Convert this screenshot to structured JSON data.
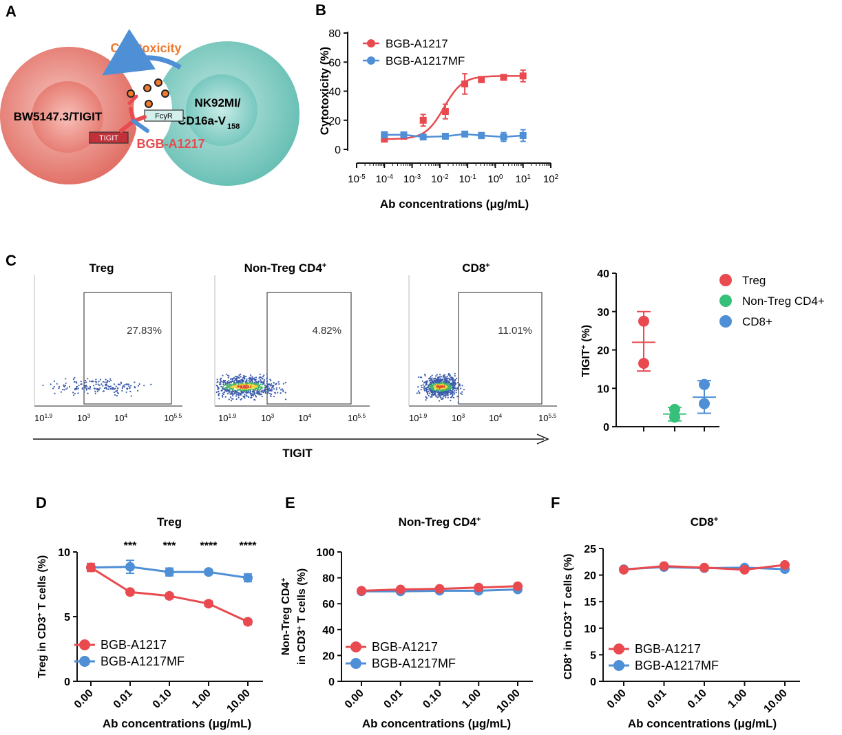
{
  "colors": {
    "red": "#e84a4f",
    "blue": "#4f8fd6",
    "green": "#36c07a",
    "cellRed": "#e26a62",
    "cellTeal": "#6fc4bb",
    "orange": "#ef7a30"
  },
  "panelA": {
    "letter": "A",
    "cytotoxicity": "Cytotoxicity",
    "leftCell": "BW5147.3/TIGIT",
    "rightCell1": "NK92MI/",
    "rightCell2": "CD16a-V",
    "rightCellSub": "158",
    "receptorFc": "FcγR",
    "receptorTigit": "TIGIT",
    "antibody": "BGB-A1217"
  },
  "panelC": {
    "letter": "C",
    "axisLabel": "TIGIT",
    "flow": [
      {
        "title": "Treg",
        "titleSup": "",
        "pct": "27.83%"
      },
      {
        "title": "Non-Treg CD4",
        "titleSup": "+",
        "pct": "4.82%"
      },
      {
        "title": "CD8",
        "titleSup": "+",
        "pct": "11.01%"
      }
    ],
    "flowTicks": [
      {
        "base": "10",
        "exp": "1.9"
      },
      {
        "base": "10",
        "exp": "3"
      },
      {
        "base": "10",
        "exp": "4"
      },
      {
        "base": "10",
        "exp": "5.5"
      }
    ]
  },
  "chart_data": [
    {
      "id": "B",
      "letter": "B",
      "type": "line",
      "xscale": "log",
      "xlabel": "Ab concentrations (μg/mL)",
      "ylabel": "Cytotoxicity (%)",
      "xlim": [
        -5,
        2
      ],
      "ylim": [
        0,
        80
      ],
      "yticks": [
        0,
        20,
        40,
        60,
        80
      ],
      "xticks": [
        {
          "base": "10",
          "exp": "-5"
        },
        {
          "base": "10",
          "exp": "-4"
        },
        {
          "base": "10",
          "exp": "-3"
        },
        {
          "base": "10",
          "exp": "-2"
        },
        {
          "base": "10",
          "exp": "-1"
        },
        {
          "base": "10",
          "exp": "0"
        },
        {
          "base": "10",
          "exp": "1"
        },
        {
          "base": "10",
          "exp": "2"
        }
      ],
      "legend": "top-left",
      "series": [
        {
          "name": "BGB-A1217",
          "color": "#e84a4f",
          "log10x": [
            -4,
            -3.3,
            -2.6,
            -1.8,
            -1.1,
            -0.5,
            0.3,
            1
          ],
          "y": [
            7,
            9,
            20,
            26,
            45,
            48,
            49.5,
            50.5
          ],
          "err": [
            1,
            1,
            4,
            5,
            7,
            2,
            1,
            4
          ]
        },
        {
          "name": "BGB-A1217MF",
          "color": "#4f8fd6",
          "log10x": [
            -4,
            -3.3,
            -2.6,
            -1.8,
            -1.1,
            -0.5,
            0.3,
            1
          ],
          "y": [
            10,
            10,
            8.5,
            9,
            10.5,
            9.5,
            8.5,
            9.5
          ],
          "err": [
            2,
            1,
            1,
            1,
            1,
            2,
            3,
            4
          ]
        }
      ]
    },
    {
      "id": "C2",
      "type": "scatter",
      "ylabel": "TIGIT",
      "ylabelSup": "+",
      "ylabelRest": " (%)",
      "ylim": [
        0,
        40
      ],
      "yticks": [
        0,
        10,
        20,
        30,
        40
      ],
      "legend": "top-right",
      "groups": [
        {
          "name": "Treg",
          "color": "#e84a4f",
          "points": [
            27.5,
            16.5
          ],
          "mean": 22,
          "error": [
            14.5,
            30
          ]
        },
        {
          "name": "Non-Treg CD4+",
          "color": "#36c07a",
          "points": [
            4.5,
            2.5
          ],
          "mean": 3.3,
          "error": [
            1.5,
            5
          ]
        },
        {
          "name": "CD8+",
          "color": "#4f8fd6",
          "points": [
            11,
            6
          ],
          "mean": 7.7,
          "error": [
            3.5,
            12
          ]
        }
      ]
    },
    {
      "id": "D",
      "letter": "D",
      "type": "line",
      "title": "Treg",
      "titleSup": "",
      "xlabel": "Ab concentrations (μg/mL)",
      "ylabel": "Treg in CD3",
      "ylabelSup": "+",
      "ylabelRest": " T cells (%)",
      "categories": [
        "0.00",
        "0.01",
        "0.10",
        "1.00",
        "10.00"
      ],
      "ylim": [
        0,
        10
      ],
      "yticks": [
        0,
        5,
        10
      ],
      "annotations": [
        "",
        "***",
        "***",
        "****",
        "****"
      ],
      "legend": "bottom-left",
      "series": [
        {
          "name": "BGB-A1217",
          "color": "#e84a4f",
          "values": [
            8.8,
            6.9,
            6.6,
            6.0,
            4.6
          ],
          "err": [
            0.3,
            0.2,
            0.2,
            0.2,
            0.2
          ]
        },
        {
          "name": "BGB-A1217MF",
          "color": "#4f8fd6",
          "values": [
            8.8,
            8.85,
            8.45,
            8.45,
            8.0
          ],
          "err": [
            0.3,
            0.5,
            0.3,
            0.2,
            0.3
          ]
        }
      ]
    },
    {
      "id": "E",
      "letter": "E",
      "type": "line",
      "title": "Non-Treg CD4",
      "titleSup": "+",
      "xlabel": "Ab concentrations (μg/mL)",
      "ylabel": "Non-Treg CD4",
      "ylabelSup": "+",
      "ylabel2": "in CD3",
      "ylabel2Sup": "+",
      "ylabel2Rest": " T cells (%)",
      "categories": [
        "0.00",
        "0.01",
        "0.10",
        "1.00",
        "10.00"
      ],
      "ylim": [
        0,
        100
      ],
      "yticks": [
        0,
        20,
        40,
        60,
        80,
        100
      ],
      "legend": "bottom-left",
      "series": [
        {
          "name": "BGB-A1217",
          "color": "#e84a4f",
          "values": [
            70,
            71,
            71.5,
            72.5,
            73.5
          ],
          "err": [
            1,
            1,
            1,
            1,
            1
          ]
        },
        {
          "name": "BGB-A1217MF",
          "color": "#4f8fd6",
          "values": [
            69.5,
            69.5,
            70,
            70,
            71
          ],
          "err": [
            1,
            1,
            1,
            1,
            1
          ]
        }
      ]
    },
    {
      "id": "F",
      "letter": "F",
      "type": "line",
      "title": "CD8",
      "titleSup": "+",
      "xlabel": "Ab concentrations (μg/mL)",
      "ylabel": "CD8",
      "ylabelSup": "+",
      "ylabelRest": " in CD3",
      "ylabelSup2": "+",
      "ylabelRest2": " T cells (%)",
      "categories": [
        "0.00",
        "0.01",
        "0.10",
        "1.00",
        "10.00"
      ],
      "ylim": [
        0,
        25
      ],
      "yticks": [
        0,
        5,
        10,
        15,
        20,
        25
      ],
      "legend": "bottom-left",
      "series": [
        {
          "name": "BGB-A1217",
          "color": "#e84a4f",
          "values": [
            21,
            21.7,
            21.4,
            21.0,
            21.9
          ],
          "err": [
            0.3,
            0.3,
            0.3,
            0.3,
            0.3
          ]
        },
        {
          "name": "BGB-A1217MF",
          "color": "#4f8fd6",
          "values": [
            21.1,
            21.5,
            21.3,
            21.4,
            21.1
          ],
          "err": [
            0.3,
            0.3,
            0.3,
            0.3,
            0.3
          ]
        }
      ]
    }
  ]
}
